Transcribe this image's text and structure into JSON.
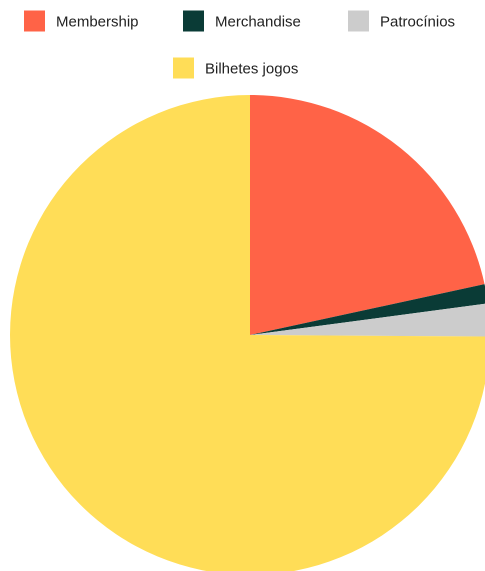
{
  "chart_data": {
    "type": "pie",
    "title": "",
    "legend_position": "top",
    "start": "12 o'clock",
    "direction": "clockwise",
    "slices": [
      {
        "label": "Membership",
        "value": 21.6,
        "color": "#FF6347"
      },
      {
        "label": "Merchandise",
        "value": 1.3,
        "color": "#0A3B36"
      },
      {
        "label": "Patrocínios",
        "value": 2.2,
        "color": "#CCCCCC"
      },
      {
        "label": "Bilhetes jogos",
        "value": 74.9,
        "color": "#FFDD57"
      }
    ]
  }
}
